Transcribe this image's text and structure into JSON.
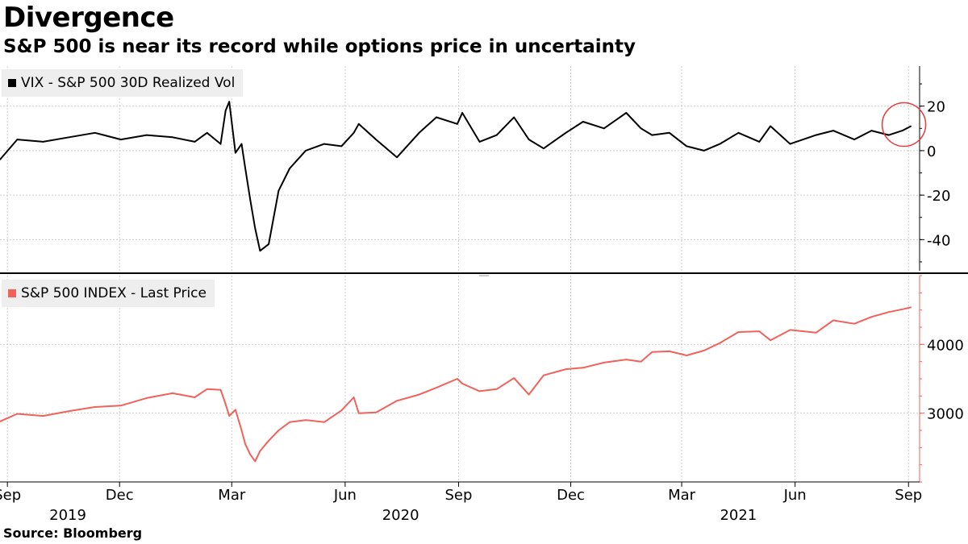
{
  "header": {
    "title": "Divergence",
    "subtitle": "S&P 500 is near its record while options price in uncertainty"
  },
  "footer": {
    "source": "Source: Bloomberg"
  },
  "colors": {
    "vix_line": "#000000",
    "spx_line": "#f0625a",
    "highlight_circle": "#e8393b",
    "grid": "#cccccc"
  },
  "chart_data": [
    {
      "type": "line",
      "title": "VIX - S&P 500 30D Realized Vol",
      "legend": [
        "VIX - S&P 500 30D Realized Vol"
      ],
      "legend_position": "top-left",
      "xlabel": "",
      "ylabel": "",
      "ylim": [
        -54,
        38
      ],
      "yticks": [
        20,
        0,
        -20,
        -40
      ],
      "ytick_labels": [
        "20",
        "0",
        "-20",
        "-40"
      ],
      "grid": true,
      "annotation": "circle highlighting latest values (Aug-Sep 2021)",
      "series": [
        {
          "name": "VIX - S&P 500 30D Realized Vol",
          "color": "#000000",
          "x": [
            "2019-08-26",
            "2019-09-09",
            "2019-09-30",
            "2019-10-21",
            "2019-11-11",
            "2019-12-02",
            "2019-12-23",
            "2020-01-13",
            "2020-01-31",
            "2020-02-10",
            "2020-02-21",
            "2020-02-25",
            "2020-02-28",
            "2020-03-04",
            "2020-03-09",
            "2020-03-12",
            "2020-03-16",
            "2020-03-20",
            "2020-03-24",
            "2020-03-31",
            "2020-04-08",
            "2020-04-17",
            "2020-04-30",
            "2020-05-15",
            "2020-05-29",
            "2020-06-08",
            "2020-06-12",
            "2020-06-26",
            "2020-07-13",
            "2020-07-31",
            "2020-08-14",
            "2020-08-31",
            "2020-09-04",
            "2020-09-18",
            "2020-10-02",
            "2020-10-16",
            "2020-10-28",
            "2020-11-09",
            "2020-11-27",
            "2020-12-11",
            "2020-12-28",
            "2021-01-15",
            "2021-01-27",
            "2021-02-05",
            "2021-02-19",
            "2021-03-05",
            "2021-03-19",
            "2021-04-01",
            "2021-04-16",
            "2021-05-03",
            "2021-05-12",
            "2021-05-28",
            "2021-06-18",
            "2021-07-02",
            "2021-07-19",
            "2021-08-02",
            "2021-08-16",
            "2021-08-27",
            "2021-09-03"
          ],
          "values": [
            -4,
            5,
            4,
            6,
            8,
            5,
            7,
            6,
            4,
            8,
            3,
            18,
            22,
            -1,
            3,
            -8,
            -22,
            -35,
            -45,
            -42,
            -18,
            -8,
            0,
            3,
            2,
            8,
            12,
            5,
            -3,
            8,
            15,
            12,
            17,
            4,
            7,
            15,
            5,
            1,
            8,
            13,
            10,
            17,
            10,
            7,
            8,
            2,
            0,
            3,
            8,
            4,
            11,
            3,
            7,
            9,
            5,
            9,
            7,
            9,
            11
          ]
        }
      ]
    },
    {
      "type": "line",
      "title": "S&P 500 INDEX - Last Price",
      "legend": [
        "S&P 500 INDEX - Last Price"
      ],
      "legend_position": "top-left",
      "xlabel": "",
      "ylabel": "",
      "ylim": [
        2000,
        5000
      ],
      "yticks": [
        4000,
        3000
      ],
      "ytick_labels": [
        "4000",
        "3000"
      ],
      "grid": true,
      "series": [
        {
          "name": "S&P 500 INDEX - Last Price",
          "color": "#f0625a",
          "x": [
            "2019-08-26",
            "2019-09-09",
            "2019-09-30",
            "2019-10-21",
            "2019-11-11",
            "2019-12-02",
            "2019-12-23",
            "2020-01-13",
            "2020-01-31",
            "2020-02-10",
            "2020-02-21",
            "2020-02-25",
            "2020-02-28",
            "2020-03-04",
            "2020-03-09",
            "2020-03-12",
            "2020-03-16",
            "2020-03-20",
            "2020-03-24",
            "2020-03-31",
            "2020-04-08",
            "2020-04-17",
            "2020-04-30",
            "2020-05-15",
            "2020-05-29",
            "2020-06-08",
            "2020-06-12",
            "2020-06-26",
            "2020-07-13",
            "2020-07-31",
            "2020-08-14",
            "2020-08-31",
            "2020-09-04",
            "2020-09-18",
            "2020-10-02",
            "2020-10-16",
            "2020-10-28",
            "2020-11-09",
            "2020-11-27",
            "2020-12-11",
            "2020-12-28",
            "2021-01-15",
            "2021-01-27",
            "2021-02-05",
            "2021-02-19",
            "2021-03-05",
            "2021-03-19",
            "2021-04-01",
            "2021-04-16",
            "2021-05-03",
            "2021-05-12",
            "2021-05-28",
            "2021-06-18",
            "2021-07-02",
            "2021-07-19",
            "2021-08-02",
            "2021-08-16",
            "2021-08-27",
            "2021-09-03"
          ],
          "values": [
            2880,
            2990,
            2960,
            3030,
            3090,
            3110,
            3220,
            3290,
            3230,
            3350,
            3340,
            3130,
            2960,
            3050,
            2750,
            2550,
            2400,
            2300,
            2450,
            2600,
            2750,
            2870,
            2900,
            2870,
            3040,
            3230,
            3000,
            3010,
            3180,
            3270,
            3370,
            3500,
            3430,
            3320,
            3350,
            3510,
            3270,
            3550,
            3640,
            3660,
            3735,
            3780,
            3750,
            3890,
            3900,
            3840,
            3910,
            4020,
            4180,
            4190,
            4060,
            4210,
            4170,
            4350,
            4300,
            4400,
            4470,
            4510,
            4540
          ]
        }
      ]
    }
  ],
  "x_axis": {
    "month_labels": [
      {
        "label": "Sep",
        "date": "2019-09-01"
      },
      {
        "label": "Dec",
        "date": "2019-12-01"
      },
      {
        "label": "Mar",
        "date": "2020-03-01"
      },
      {
        "label": "Jun",
        "date": "2020-06-01"
      },
      {
        "label": "Sep",
        "date": "2020-09-01"
      },
      {
        "label": "Dec",
        "date": "2020-12-01"
      },
      {
        "label": "Mar",
        "date": "2021-03-01"
      },
      {
        "label": "Jun",
        "date": "2021-06-01"
      },
      {
        "label": "Sep",
        "date": "2021-09-01"
      }
    ],
    "year_labels": [
      {
        "label": "2019",
        "date": "2019-10-20"
      },
      {
        "label": "2020",
        "date": "2020-07-16"
      },
      {
        "label": "2021",
        "date": "2021-04-16"
      }
    ],
    "range": [
      "2019-08-26",
      "2021-09-10"
    ]
  }
}
